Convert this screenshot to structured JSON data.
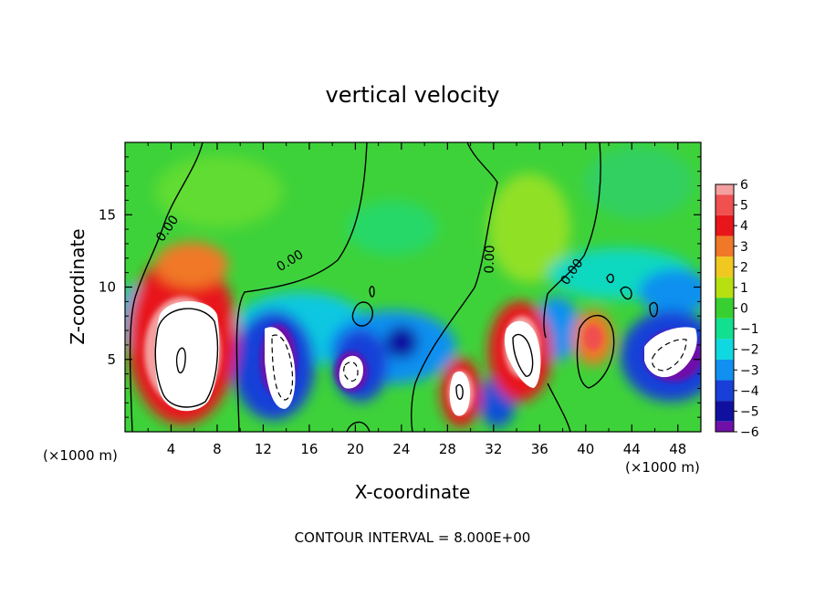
{
  "chart_data": {
    "type": "heatmap",
    "title": "vertical velocity",
    "xlabel": "X-coordinate",
    "ylabel": "Z-coordinate",
    "x_unit_left": "(×1000 m)",
    "x_unit_right": "(×1000 m)",
    "footer": "CONTOUR INTERVAL = 8.000E+00",
    "xlim": [
      0,
      50
    ],
    "ylim": [
      0,
      20
    ],
    "x_ticks": [
      4,
      8,
      12,
      16,
      20,
      24,
      28,
      32,
      36,
      40,
      44,
      48
    ],
    "y_ticks": [
      5,
      10,
      15
    ],
    "colorbar": {
      "ticks": [
        "6",
        "5",
        "4",
        "3",
        "2",
        "1",
        "0",
        "−1",
        "−2",
        "−3",
        "−4",
        "−5",
        "−6"
      ],
      "range": [
        -6,
        6
      ],
      "colors": [
        "#f4a0a0",
        "#f05050",
        "#e8161a",
        "#f07828",
        "#f0c820",
        "#b8e010",
        "#38d030",
        "#10e090",
        "#10d8e0",
        "#1090f0",
        "#1840d8",
        "#1010a0",
        "#7010a8"
      ]
    },
    "contour_labels": [
      "0.00",
      "0.00",
      "0.00",
      "0.00"
    ],
    "features": [
      {
        "sign": "positive",
        "x": 5.3,
        "z": 5.5,
        "peak": 6
      },
      {
        "sign": "negative",
        "x": 14.2,
        "z": 5.2,
        "peak": -6
      },
      {
        "sign": "negative",
        "x": 19.5,
        "z": 4.2,
        "peak": -6
      },
      {
        "sign": "negative",
        "x": 24.2,
        "z": 6.5,
        "peak": -5
      },
      {
        "sign": "positive",
        "x": 29.2,
        "z": 3.0,
        "peak": 6
      },
      {
        "sign": "positive",
        "x": 34.0,
        "z": 5.8,
        "peak": 6
      },
      {
        "sign": "positive",
        "x": 40.5,
        "z": 6.2,
        "peak": 4
      },
      {
        "sign": "negative",
        "x": 47.0,
        "z": 5.8,
        "peak": -6
      },
      {
        "sign": "positive",
        "x": 34.5,
        "z": 13.0,
        "peak": 2
      }
    ]
  }
}
